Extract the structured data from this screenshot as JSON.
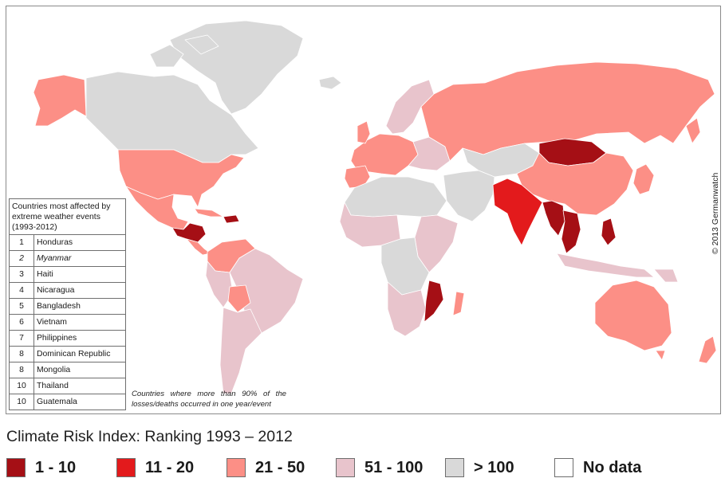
{
  "map": {
    "copyright": "© 2013 Germanwatch",
    "footnote": "Countries where more than 90% of the losses/deaths occurred in one year/event",
    "colors": {
      "rank_1_10": "#a50f15",
      "rank_11_20": "#e31a1c",
      "rank_21_50": "#fc8f86",
      "rank_51_100": "#e8c4cc",
      "rank_over_100": "#d9d9d9",
      "no_data": "#ffffff"
    }
  },
  "table": {
    "title": "Countries most affected by extreme weather events (1993-2012)",
    "rows": [
      {
        "rank": "1",
        "country": "Honduras",
        "italic": false
      },
      {
        "rank": "2",
        "country": "Myanmar",
        "italic": true
      },
      {
        "rank": "3",
        "country": "Haiti",
        "italic": false
      },
      {
        "rank": "4",
        "country": "Nicaragua",
        "italic": false
      },
      {
        "rank": "5",
        "country": "Bangladesh",
        "italic": false
      },
      {
        "rank": "6",
        "country": "Vietnam",
        "italic": false
      },
      {
        "rank": "7",
        "country": "Philippines",
        "italic": false
      },
      {
        "rank": "8",
        "country": "Dominican Republic",
        "italic": false
      },
      {
        "rank": "8",
        "country": "Mongolia",
        "italic": false
      },
      {
        "rank": "10",
        "country": "Thailand",
        "italic": false
      },
      {
        "rank": "10",
        "country": "Guatemala",
        "italic": false
      }
    ]
  },
  "title": "Climate Risk Index: Ranking 1993 – 2012",
  "legend": [
    {
      "label": "1 - 10",
      "color": "#a50f15"
    },
    {
      "label": "11 - 20",
      "color": "#e31a1c"
    },
    {
      "label": "21 - 50",
      "color": "#fc8f86"
    },
    {
      "label": "51 - 100",
      "color": "#e8c4cc"
    },
    {
      "label": "> 100",
      "color": "#d9d9d9"
    },
    {
      "label": "No data",
      "color": "#ffffff"
    }
  ]
}
